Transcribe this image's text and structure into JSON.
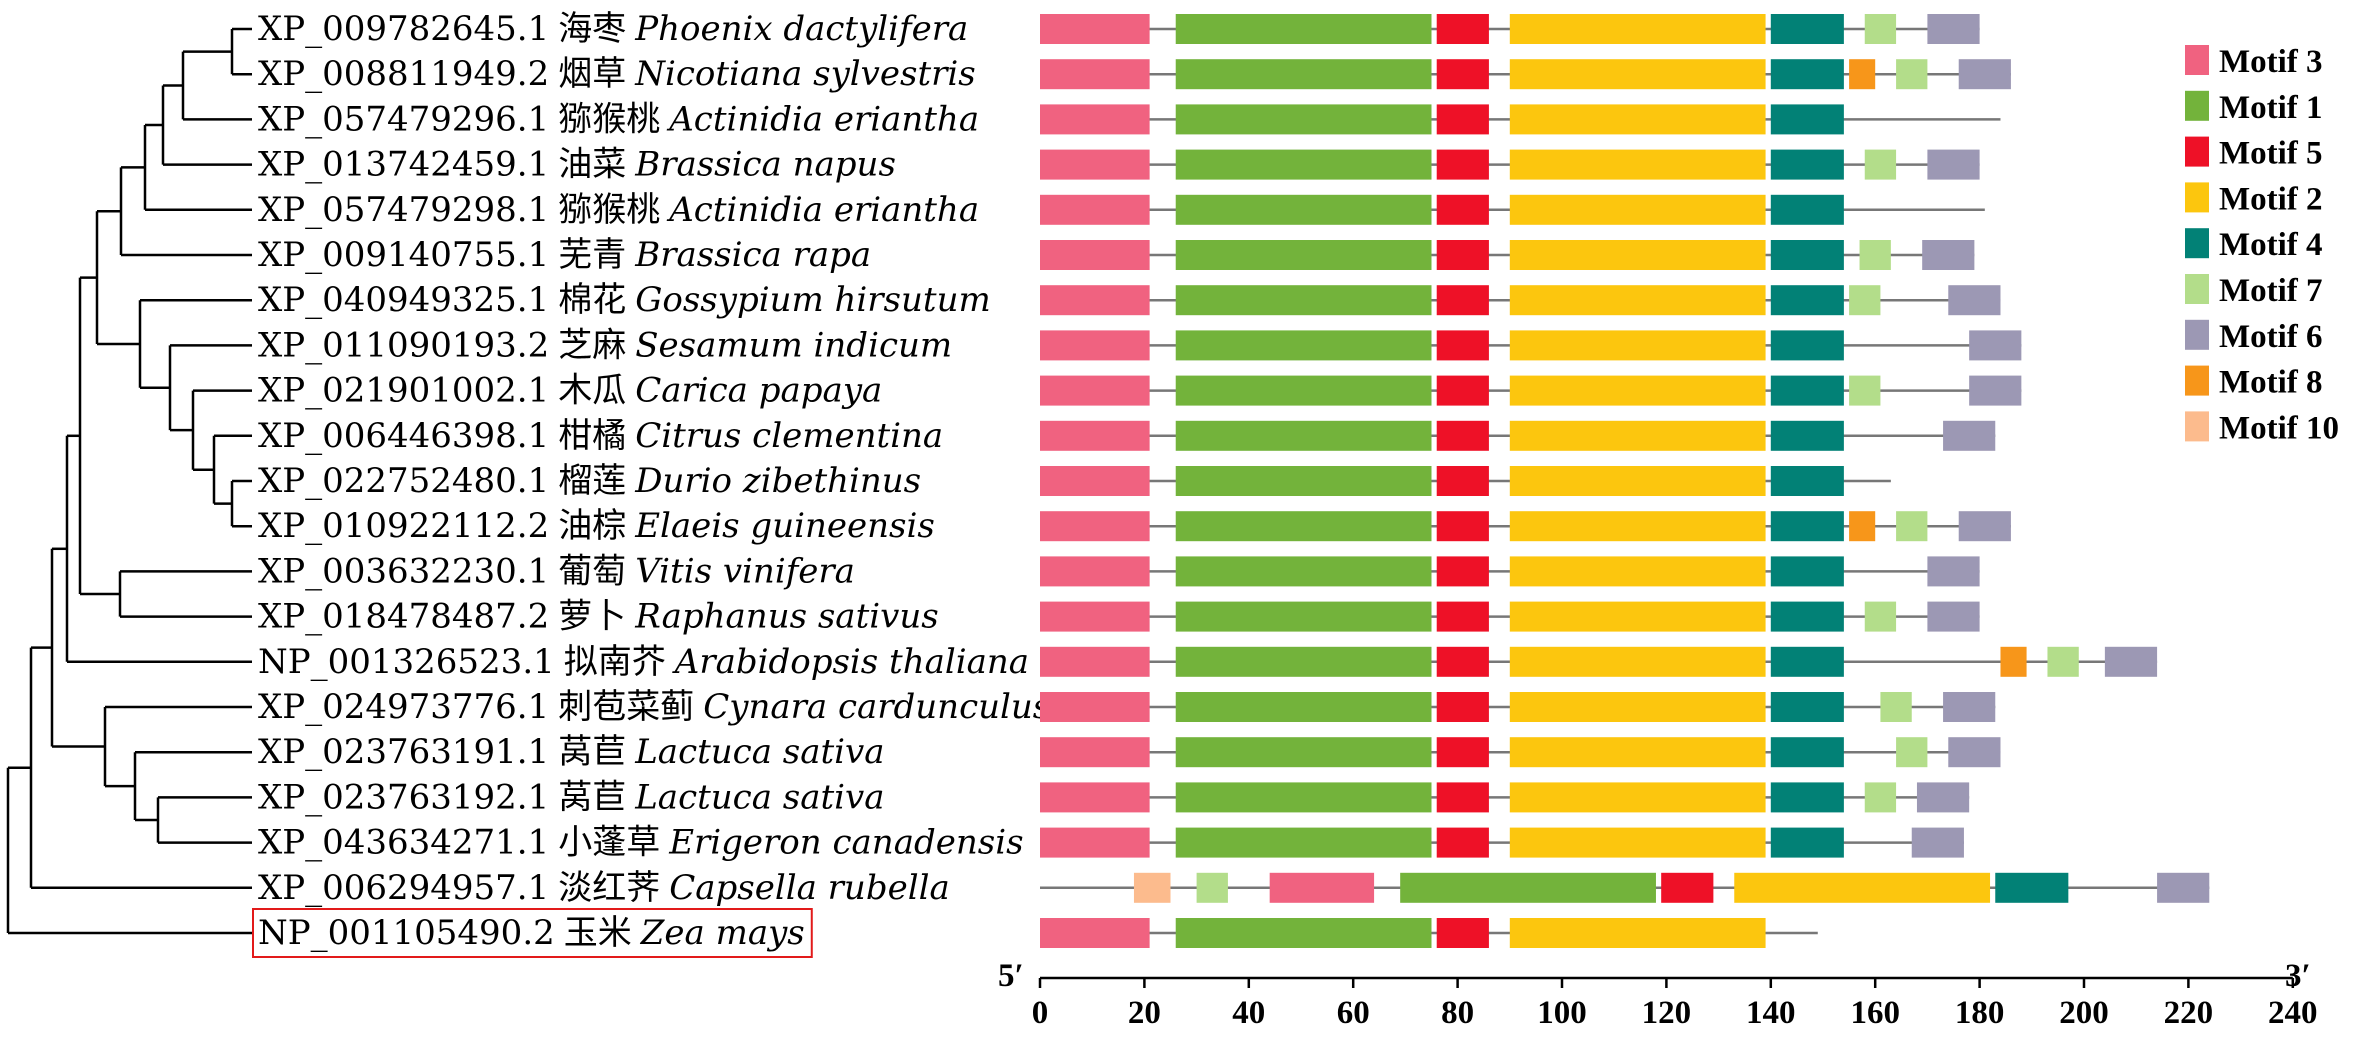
{
  "colors": {
    "Motif 3": "#f06280",
    "Motif 1": "#73b33b",
    "Motif 5": "#ee1127",
    "Motif 2": "#fcc60e",
    "Motif 4": "#028176",
    "Motif 7": "#b3dd8a",
    "Motif 6": "#9c98b4",
    "Motif 8": "#f7961a",
    "Motif 10": "#fcbb8d"
  },
  "legend": [
    "Motif 3",
    "Motif 1",
    "Motif 5",
    "Motif 2",
    "Motif 4",
    "Motif 7",
    "Motif 6",
    "Motif 8",
    "Motif 10"
  ],
  "axis": {
    "ticks": [
      0,
      20,
      40,
      60,
      80,
      100,
      120,
      140,
      160,
      180,
      200,
      220,
      240
    ],
    "left_label": "5′",
    "right_label": "3′"
  },
  "sequences": [
    {
      "id": "XP_009782645.1",
      "cn": "海枣",
      "species": "Phoenix dactylifera",
      "length": 180,
      "motifs": [
        [
          "Motif 3",
          0,
          21
        ],
        [
          "Motif 1",
          26,
          75
        ],
        [
          "Motif 5",
          76,
          86
        ],
        [
          "Motif 2",
          90,
          139
        ],
        [
          "Motif 4",
          140,
          154
        ],
        [
          "Motif 7",
          158,
          164
        ],
        [
          "Motif 6",
          170,
          180
        ]
      ]
    },
    {
      "id": "XP_008811949.2",
      "cn": "烟草",
      "species": "Nicotiana sylvestris",
      "length": 186,
      "motifs": [
        [
          "Motif 3",
          0,
          21
        ],
        [
          "Motif 1",
          26,
          75
        ],
        [
          "Motif 5",
          76,
          86
        ],
        [
          "Motif 2",
          90,
          139
        ],
        [
          "Motif 4",
          140,
          154
        ],
        [
          "Motif 8",
          155,
          160
        ],
        [
          "Motif 7",
          164,
          170
        ],
        [
          "Motif 6",
          176,
          186
        ]
      ]
    },
    {
      "id": "XP_057479296.1",
      "cn": "猕猴桃",
      "species": "Actinidia eriantha",
      "length": 184,
      "motifs": [
        [
          "Motif 3",
          0,
          21
        ],
        [
          "Motif 1",
          26,
          75
        ],
        [
          "Motif 5",
          76,
          86
        ],
        [
          "Motif 2",
          90,
          139
        ],
        [
          "Motif 4",
          140,
          154
        ]
      ]
    },
    {
      "id": "XP_013742459.1",
      "cn": "油菜",
      "species": "Brassica napus",
      "length": 180,
      "motifs": [
        [
          "Motif 3",
          0,
          21
        ],
        [
          "Motif 1",
          26,
          75
        ],
        [
          "Motif 5",
          76,
          86
        ],
        [
          "Motif 2",
          90,
          139
        ],
        [
          "Motif 4",
          140,
          154
        ],
        [
          "Motif 7",
          158,
          164
        ],
        [
          "Motif 6",
          170,
          180
        ]
      ]
    },
    {
      "id": "XP_057479298.1",
      "cn": "猕猴桃",
      "species": "Actinidia eriantha",
      "length": 181,
      "motifs": [
        [
          "Motif 3",
          0,
          21
        ],
        [
          "Motif 1",
          26,
          75
        ],
        [
          "Motif 5",
          76,
          86
        ],
        [
          "Motif 2",
          90,
          139
        ],
        [
          "Motif 4",
          140,
          154
        ]
      ]
    },
    {
      "id": "XP_009140755.1",
      "cn": "芜青",
      "species": "Brassica rapa",
      "length": 179,
      "motifs": [
        [
          "Motif 3",
          0,
          21
        ],
        [
          "Motif 1",
          26,
          75
        ],
        [
          "Motif 5",
          76,
          86
        ],
        [
          "Motif 2",
          90,
          139
        ],
        [
          "Motif 4",
          140,
          154
        ],
        [
          "Motif 7",
          157,
          163
        ],
        [
          "Motif 6",
          169,
          179
        ]
      ]
    },
    {
      "id": "XP_040949325.1",
      "cn": "棉花",
      "species": "Gossypium hirsutum",
      "length": 184,
      "motifs": [
        [
          "Motif 3",
          0,
          21
        ],
        [
          "Motif 1",
          26,
          75
        ],
        [
          "Motif 5",
          76,
          86
        ],
        [
          "Motif 2",
          90,
          139
        ],
        [
          "Motif 4",
          140,
          154
        ],
        [
          "Motif 7",
          155,
          161
        ],
        [
          "Motif 6",
          174,
          184
        ]
      ]
    },
    {
      "id": "XP_011090193.2",
      "cn": "芝麻",
      "species": "Sesamum indicum",
      "length": 188,
      "motifs": [
        [
          "Motif 3",
          0,
          21
        ],
        [
          "Motif 1",
          26,
          75
        ],
        [
          "Motif 5",
          76,
          86
        ],
        [
          "Motif 2",
          90,
          139
        ],
        [
          "Motif 4",
          140,
          154
        ],
        [
          "Motif 6",
          178,
          188
        ]
      ]
    },
    {
      "id": "XP_021901002.1",
      "cn": "木瓜",
      "species": "Carica papaya",
      "length": 188,
      "motifs": [
        [
          "Motif 3",
          0,
          21
        ],
        [
          "Motif 1",
          26,
          75
        ],
        [
          "Motif 5",
          76,
          86
        ],
        [
          "Motif 2",
          90,
          139
        ],
        [
          "Motif 4",
          140,
          154
        ],
        [
          "Motif 7",
          155,
          161
        ],
        [
          "Motif 6",
          178,
          188
        ]
      ]
    },
    {
      "id": "XP_006446398.1",
      "cn": "柑橘",
      "species": "Citrus clementina",
      "length": 183,
      "motifs": [
        [
          "Motif 3",
          0,
          21
        ],
        [
          "Motif 1",
          26,
          75
        ],
        [
          "Motif 5",
          76,
          86
        ],
        [
          "Motif 2",
          90,
          139
        ],
        [
          "Motif 4",
          140,
          154
        ],
        [
          "Motif 6",
          173,
          183
        ]
      ]
    },
    {
      "id": "XP_022752480.1",
      "cn": "榴莲",
      "species": "Durio zibethinus",
      "length": 163,
      "motifs": [
        [
          "Motif 3",
          0,
          21
        ],
        [
          "Motif 1",
          26,
          75
        ],
        [
          "Motif 5",
          76,
          86
        ],
        [
          "Motif 2",
          90,
          139
        ],
        [
          "Motif 4",
          140,
          154
        ]
      ]
    },
    {
      "id": "XP_010922112.2",
      "cn": "油棕",
      "species": "Elaeis guineensis",
      "length": 186,
      "motifs": [
        [
          "Motif 3",
          0,
          21
        ],
        [
          "Motif 1",
          26,
          75
        ],
        [
          "Motif 5",
          76,
          86
        ],
        [
          "Motif 2",
          90,
          139
        ],
        [
          "Motif 4",
          140,
          154
        ],
        [
          "Motif 8",
          155,
          160
        ],
        [
          "Motif 7",
          164,
          170
        ],
        [
          "Motif 6",
          176,
          186
        ]
      ]
    },
    {
      "id": "XP_003632230.1",
      "cn": "葡萄",
      "species": "Vitis vinifera",
      "length": 180,
      "motifs": [
        [
          "Motif 3",
          0,
          21
        ],
        [
          "Motif 1",
          26,
          75
        ],
        [
          "Motif 5",
          76,
          86
        ],
        [
          "Motif 2",
          90,
          139
        ],
        [
          "Motif 4",
          140,
          154
        ],
        [
          "Motif 6",
          170,
          180
        ]
      ]
    },
    {
      "id": "XP_018478487.2",
      "cn": "萝卜",
      "species": "Raphanus sativus",
      "length": 180,
      "motifs": [
        [
          "Motif 3",
          0,
          21
        ],
        [
          "Motif 1",
          26,
          75
        ],
        [
          "Motif 5",
          76,
          86
        ],
        [
          "Motif 2",
          90,
          139
        ],
        [
          "Motif 4",
          140,
          154
        ],
        [
          "Motif 7",
          158,
          164
        ],
        [
          "Motif 6",
          170,
          180
        ]
      ]
    },
    {
      "id": "NP_001326523.1",
      "cn": "拟南芥",
      "species": "Arabidopsis thaliana",
      "length": 214,
      "motifs": [
        [
          "Motif 3",
          0,
          21
        ],
        [
          "Motif 1",
          26,
          75
        ],
        [
          "Motif 5",
          76,
          86
        ],
        [
          "Motif 2",
          90,
          139
        ],
        [
          "Motif 4",
          140,
          154
        ],
        [
          "Motif 8",
          184,
          189
        ],
        [
          "Motif 7",
          193,
          199
        ],
        [
          "Motif 6",
          204,
          214
        ]
      ]
    },
    {
      "id": "XP_024973776.1",
      "cn": "刺苞菜蓟",
      "species": "Cynara cardunculus",
      "length": 183,
      "motifs": [
        [
          "Motif 3",
          0,
          21
        ],
        [
          "Motif 1",
          26,
          75
        ],
        [
          "Motif 5",
          76,
          86
        ],
        [
          "Motif 2",
          90,
          139
        ],
        [
          "Motif 4",
          140,
          154
        ],
        [
          "Motif 7",
          161,
          167
        ],
        [
          "Motif 6",
          173,
          183
        ]
      ]
    },
    {
      "id": "XP_023763191.1",
      "cn": "莴苣",
      "species": "Lactuca sativa",
      "length": 184,
      "motifs": [
        [
          "Motif 3",
          0,
          21
        ],
        [
          "Motif 1",
          26,
          75
        ],
        [
          "Motif 5",
          76,
          86
        ],
        [
          "Motif 2",
          90,
          139
        ],
        [
          "Motif 4",
          140,
          154
        ],
        [
          "Motif 7",
          164,
          170
        ],
        [
          "Motif 6",
          174,
          184
        ]
      ]
    },
    {
      "id": "XP_023763192.1",
      "cn": "莴苣",
      "species": "Lactuca sativa",
      "length": 178,
      "motifs": [
        [
          "Motif 3",
          0,
          21
        ],
        [
          "Motif 1",
          26,
          75
        ],
        [
          "Motif 5",
          76,
          86
        ],
        [
          "Motif 2",
          90,
          139
        ],
        [
          "Motif 4",
          140,
          154
        ],
        [
          "Motif 7",
          158,
          164
        ],
        [
          "Motif 6",
          168,
          178
        ]
      ]
    },
    {
      "id": "XP_043634271.1",
      "cn": "小蓬草",
      "species": "Erigeron canadensis",
      "length": 177,
      "motifs": [
        [
          "Motif 3",
          0,
          21
        ],
        [
          "Motif 1",
          26,
          75
        ],
        [
          "Motif 5",
          76,
          86
        ],
        [
          "Motif 2",
          90,
          139
        ],
        [
          "Motif 4",
          140,
          154
        ],
        [
          "Motif 6",
          167,
          177
        ]
      ]
    },
    {
      "id": "XP_006294957.1",
      "cn": "淡红荠",
      "species": "Capsella rubella",
      "length": 224,
      "motifs": [
        [
          "Motif 10",
          18,
          25
        ],
        [
          "Motif 7",
          30,
          36
        ],
        [
          "Motif 3",
          44,
          64
        ],
        [
          "Motif 1",
          69,
          118
        ],
        [
          "Motif 5",
          119,
          129
        ],
        [
          "Motif 2",
          133,
          182
        ],
        [
          "Motif 4",
          183,
          197
        ],
        [
          "Motif 6",
          214,
          224
        ]
      ]
    },
    {
      "id": "NP_001105490.2",
      "cn": "玉米",
      "species": "Zea mays",
      "length": 149,
      "highlight": true,
      "motifs": [
        [
          "Motif 3",
          0,
          21
        ],
        [
          "Motif 1",
          26,
          75
        ],
        [
          "Motif 5",
          76,
          86
        ],
        [
          "Motif 2",
          90,
          139
        ]
      ]
    }
  ]
}
